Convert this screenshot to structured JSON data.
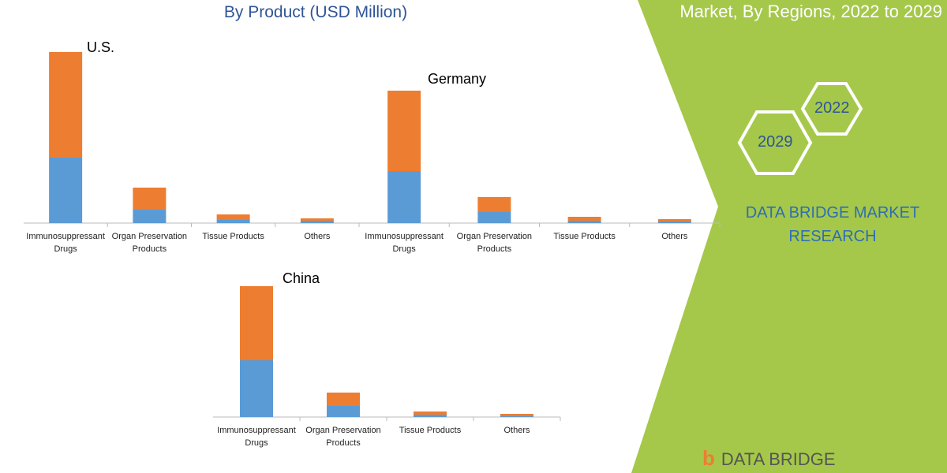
{
  "header": {
    "title": "By Product (USD Million)",
    "right_title": "Market, By Regions, 2022 to 2029"
  },
  "badges": {
    "year_a": "2022",
    "year_b": "2029"
  },
  "brand": {
    "line1": "DATA BRIDGE MARKET",
    "line2": "RESEARCH",
    "logo_text": "DATA BRIDGE"
  },
  "colors": {
    "series_lower": "#5b9bd5",
    "series_upper": "#ed7d31",
    "panel": "#a5c84a",
    "title": "#2f5597"
  },
  "chart_data": [
    {
      "type": "bar",
      "stacked": true,
      "title": "U.S.",
      "categories": [
        "Immunosuppressant Drugs",
        "Organ Preservation Products",
        "Tissue Products",
        "Others"
      ],
      "series": [
        {
          "values": [
            83,
            17,
            4,
            3
          ]
        },
        {
          "values": [
            134,
            28,
            7,
            3
          ]
        }
      ]
    },
    {
      "type": "bar",
      "stacked": true,
      "title": "Germany",
      "categories": [
        "Immunosuppressant Drugs",
        "Organ Preservation Products",
        "Tissue Products",
        "Others"
      ],
      "series": [
        {
          "values": [
            66,
            14,
            3,
            2
          ]
        },
        {
          "values": [
            102,
            19,
            5,
            3
          ]
        }
      ]
    },
    {
      "type": "bar",
      "stacked": true,
      "title": "China",
      "categories": [
        "Immunosuppressant Drugs",
        "Organ Preservation Products",
        "Tissue Products",
        "Others"
      ],
      "series": [
        {
          "values": [
            72,
            14,
            3,
            1
          ]
        },
        {
          "values": [
            94,
            17,
            4,
            3
          ]
        }
      ]
    }
  ]
}
